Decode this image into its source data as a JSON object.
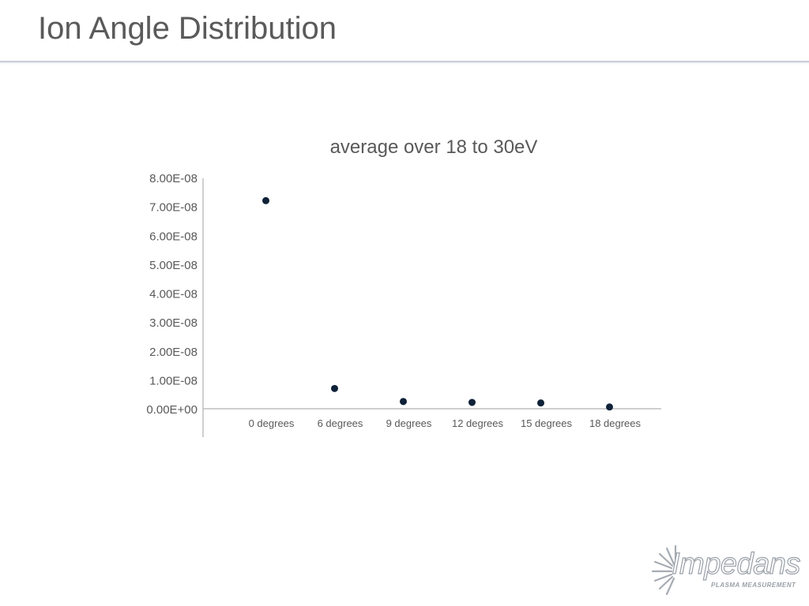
{
  "slide": {
    "title": "Ion Angle Distribution"
  },
  "logo": {
    "name": "Impedans",
    "tagline": "PLASMA MEASUREMENT"
  },
  "colors": {
    "marker": "#0f2238",
    "axis": "#bfbfbf",
    "text": "#595959",
    "title": "#5a5a5a"
  },
  "chart_data": {
    "type": "scatter",
    "title": "average over 18 to 30eV",
    "xlabel": "",
    "ylabel": "",
    "categories": [
      "0 degrees",
      "6 degrees",
      "9 degrees",
      "12 degrees",
      "15 degrees",
      "18 degrees"
    ],
    "values": [
      7.2e-08,
      7e-09,
      2.5e-09,
      2.2e-09,
      2e-09,
      6e-10
    ],
    "ylim": [
      0,
      8e-08
    ],
    "ytick_labels": [
      "0.00E+00",
      "1.00E-08",
      "2.00E-08",
      "3.00E-08",
      "4.00E-08",
      "5.00E-08",
      "6.00E-08",
      "7.00E-08",
      "8.00E-08"
    ],
    "grid": false,
    "legend": "none"
  }
}
